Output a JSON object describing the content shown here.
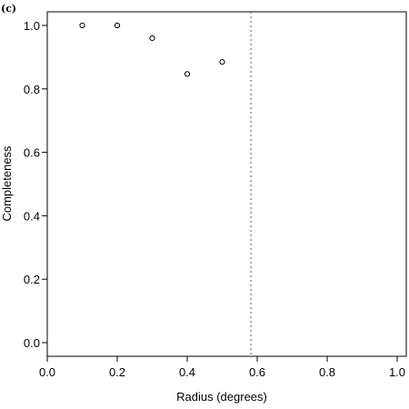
{
  "chart_data": {
    "type": "scatter",
    "panel_label": "(c)",
    "xlabel": "Radius (degrees)",
    "ylabel": "Completeness",
    "xlim": [
      0.0,
      1.0
    ],
    "ylim": [
      0.0,
      1.0
    ],
    "xticks": [
      "0.0",
      "0.2",
      "0.4",
      "0.6",
      "0.8",
      "1.0"
    ],
    "yticks": [
      "0.0",
      "0.2",
      "0.4",
      "0.6",
      "0.8",
      "1.0"
    ],
    "x": [
      0.1,
      0.2,
      0.3,
      0.4,
      0.5
    ],
    "y": [
      1.0,
      1.0,
      0.96,
      0.847,
      0.885
    ],
    "vline": 0.582,
    "grid": false,
    "colors": {
      "points": "#000000",
      "vline": "#777777"
    }
  }
}
